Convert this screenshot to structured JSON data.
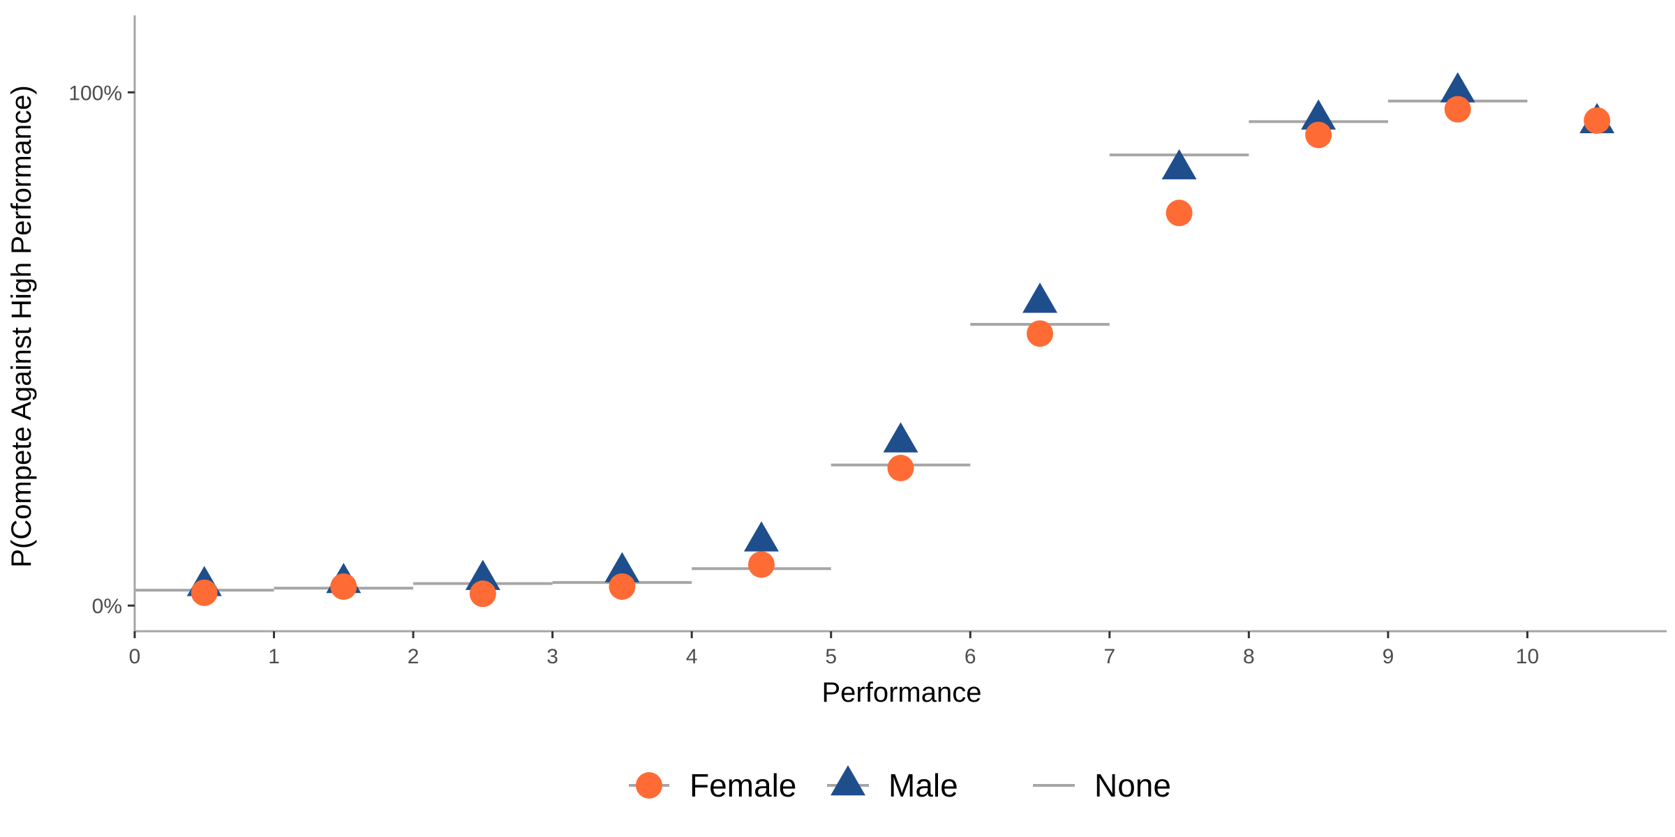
{
  "chart_data": {
    "type": "scatter",
    "xlabel": "Performance",
    "ylabel": "P(Compete Against High Performance)",
    "xlim": [
      0,
      11
    ],
    "ylim": [
      -0.05,
      1.15
    ],
    "x_ticks": [
      "0",
      "1",
      "2",
      "3",
      "4",
      "5",
      "6",
      "7",
      "8",
      "9",
      "10"
    ],
    "y_ticks": [
      {
        "value": 0,
        "label": "0%"
      },
      {
        "value": 1,
        "label": "100%"
      }
    ],
    "grid": false,
    "legend_position": "bottom",
    "series": [
      {
        "name": "Female",
        "marker": "circle",
        "color": "#FF6B35",
        "x": [
          0.5,
          1.5,
          2.5,
          3.5,
          4.5,
          5.5,
          6.5,
          7.5,
          8.5,
          9.5,
          10.5
        ],
        "y": [
          0.025,
          0.037,
          0.023,
          0.037,
          0.08,
          0.268,
          0.53,
          0.765,
          0.917,
          0.967,
          0.945
        ]
      },
      {
        "name": "Male",
        "marker": "triangle",
        "color": "#1F4E8C",
        "x": [
          0.5,
          1.5,
          2.5,
          3.5,
          4.5,
          5.5,
          6.5,
          7.5,
          8.5,
          9.5,
          10.5
        ],
        "y": [
          0.038,
          0.044,
          0.05,
          0.065,
          0.125,
          0.318,
          0.59,
          0.85,
          0.947,
          1.0,
          0.94
        ]
      },
      {
        "name": "None",
        "marker": "segment",
        "color": "#A6A6A6",
        "x_start": [
          0,
          1,
          2,
          3,
          4,
          5,
          6,
          7,
          8,
          9
        ],
        "x_end": [
          1,
          2,
          3,
          4,
          5,
          6,
          7,
          8,
          9,
          10
        ],
        "y": [
          0.03,
          0.034,
          0.043,
          0.045,
          0.072,
          0.274,
          0.548,
          0.878,
          0.943,
          0.983
        ]
      }
    ]
  }
}
